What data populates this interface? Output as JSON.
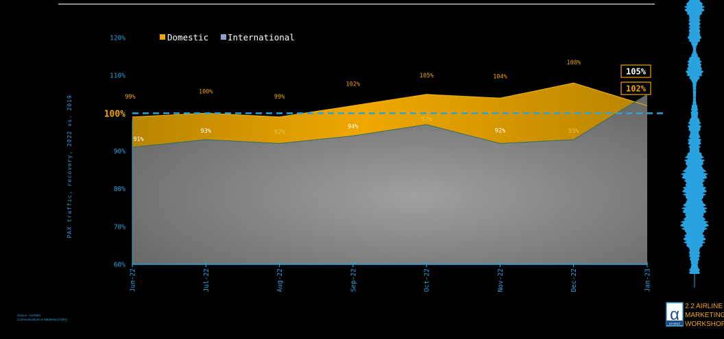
{
  "chart_data": {
    "type": "area",
    "categories": [
      "Jun-22",
      "Jul-22",
      "Aug-22",
      "Sep-22",
      "Oct-22",
      "Nov-22",
      "Dec-22",
      "Jan-23"
    ],
    "series": [
      {
        "name": "Domestic",
        "color": "#f0a500",
        "values": [
          99,
          100,
          99,
          102,
          105,
          104,
          108,
          102
        ],
        "labels": [
          "99%",
          "100%",
          "99%",
          "102%",
          "105%",
          "104%",
          "108%",
          "102%"
        ]
      },
      {
        "name": "International",
        "color": "#8a8a8a",
        "values": [
          91,
          93,
          92,
          94,
          97,
          92,
          93,
          105
        ],
        "labels": [
          "91%",
          "93%",
          "92%",
          "94%",
          "97%",
          "92%",
          "93%",
          "105%"
        ]
      }
    ],
    "ylabel": "PAX traffic, recovery, 2022 vs. 2019",
    "yticks": [
      60,
      70,
      80,
      90,
      100,
      110,
      120
    ],
    "ytick_labels": [
      "60%",
      "70%",
      "80%",
      "90%",
      "100%",
      "110%",
      "120%"
    ],
    "ylim": [
      60,
      120
    ],
    "reference_line": {
      "value": 100,
      "color": "#29a3e0"
    },
    "legend_position": "top",
    "grid": false
  },
  "source_note": [
    "Source : AIA/MIS",
    "Communications & Marketing (CMA)"
  ],
  "logo": {
    "badge_text": "ATHENS",
    "lines": [
      "2.2 AIRLINE",
      "MARKETING",
      "WORKSHOP"
    ]
  },
  "colors": {
    "axis_blue": "#29a3e0",
    "domestic": "#f0a500",
    "international": "#8a8a8a",
    "logo_orange": "#f0a500"
  }
}
